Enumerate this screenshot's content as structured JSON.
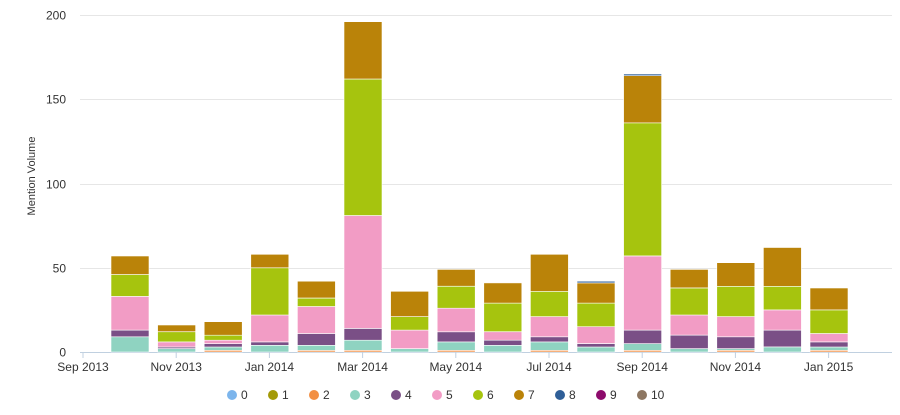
{
  "chart_data": {
    "type": "bar",
    "stacked": true,
    "ylabel": "Mention Volume",
    "xlabel": "",
    "ylim": [
      0,
      200
    ],
    "y_ticks": [
      0,
      50,
      100,
      150,
      200
    ],
    "grid": true,
    "legend_position": "bottom",
    "x_tick_labels": [
      "Sep 2013",
      "Nov 2013",
      "Jan 2014",
      "Mar 2014",
      "May 2014",
      "Jul 2014",
      "Sep 2014",
      "Nov 2014",
      "Jan 2015"
    ],
    "categories": [
      "Oct 2013",
      "Nov 2013",
      "Dec 2013",
      "Jan 2014",
      "Feb 2014",
      "Mar 2014",
      "Apr 2014",
      "May 2014",
      "Jun 2014",
      "Jul 2014",
      "Aug 2014",
      "Sep 2014",
      "Oct 2014",
      "Nov 2014",
      "Dec 2014",
      "Jan 2015"
    ],
    "series": [
      {
        "name": "0",
        "color": "#7cb5ec",
        "values": [
          0,
          0,
          0,
          0,
          0,
          0,
          0,
          0,
          0,
          0,
          0,
          0,
          0,
          0,
          0,
          0
        ]
      },
      {
        "name": "1",
        "color": "#a39a07",
        "values": [
          0,
          0,
          0,
          0,
          0,
          0,
          0,
          0,
          0,
          0,
          0,
          0,
          0,
          0,
          0,
          0
        ]
      },
      {
        "name": "2",
        "color": "#f28f43",
        "values": [
          0,
          0,
          1,
          0,
          1,
          1,
          0,
          1,
          0,
          1,
          0,
          1,
          0,
          1,
          0,
          1
        ]
      },
      {
        "name": "3",
        "color": "#8fd3c1",
        "values": [
          9,
          2,
          2,
          4,
          3,
          6,
          2,
          5,
          4,
          5,
          3,
          4,
          2,
          1,
          3,
          2
        ]
      },
      {
        "name": "4",
        "color": "#7a4f86",
        "values": [
          4,
          1,
          2,
          2,
          7,
          7,
          0,
          6,
          3,
          3,
          2,
          8,
          8,
          7,
          10,
          3
        ]
      },
      {
        "name": "5",
        "color": "#f29cc5",
        "values": [
          20,
          3,
          2,
          16,
          16,
          67,
          11,
          14,
          5,
          12,
          10,
          44,
          12,
          12,
          12,
          5
        ]
      },
      {
        "name": "6",
        "color": "#a6c40e",
        "values": [
          13,
          6,
          3,
          28,
          5,
          81,
          8,
          13,
          17,
          15,
          14,
          79,
          16,
          18,
          14,
          14
        ]
      },
      {
        "name": "7",
        "color": "#ba8309",
        "values": [
          11,
          4,
          8,
          8,
          10,
          34,
          15,
          10,
          12,
          22,
          12,
          28,
          11,
          14,
          23,
          13
        ]
      },
      {
        "name": "8",
        "color": "#2f5f98",
        "values": [
          0,
          0,
          0,
          0,
          0,
          0,
          0,
          0,
          0,
          0,
          1,
          1,
          0,
          0,
          0,
          0
        ]
      },
      {
        "name": "9",
        "color": "#8d0b6c",
        "values": [
          0,
          0,
          0,
          0,
          0,
          0,
          0,
          0,
          0,
          0,
          0,
          0,
          0,
          0,
          0,
          0
        ]
      },
      {
        "name": "10",
        "color": "#8d7661",
        "values": [
          0,
          0,
          0,
          0,
          0,
          0,
          0,
          0,
          0,
          0,
          0,
          0,
          0,
          0,
          0,
          0
        ]
      }
    ]
  }
}
